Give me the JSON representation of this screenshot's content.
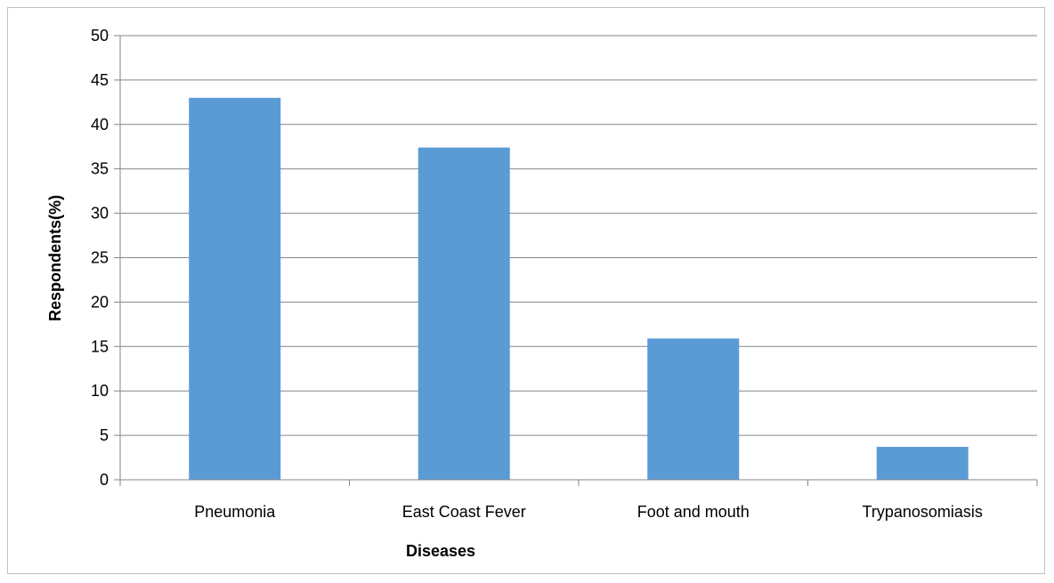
{
  "chart_data": {
    "type": "bar",
    "categories": [
      "Pneumonia",
      "East Coast Fever",
      "Foot and mouth",
      "Trypanosomiasis"
    ],
    "values": [
      43,
      37.4,
      15.9,
      3.7
    ],
    "title": "",
    "xlabel": "Diseases",
    "ylabel": "Respondents(%)",
    "ylim": [
      0,
      50
    ],
    "yticks": [
      0,
      5,
      10,
      15,
      20,
      25,
      30,
      35,
      40,
      45,
      50
    ],
    "grid": true,
    "legend": "none",
    "bar_color": "#5b9bd5",
    "grid_color": "#868686"
  }
}
